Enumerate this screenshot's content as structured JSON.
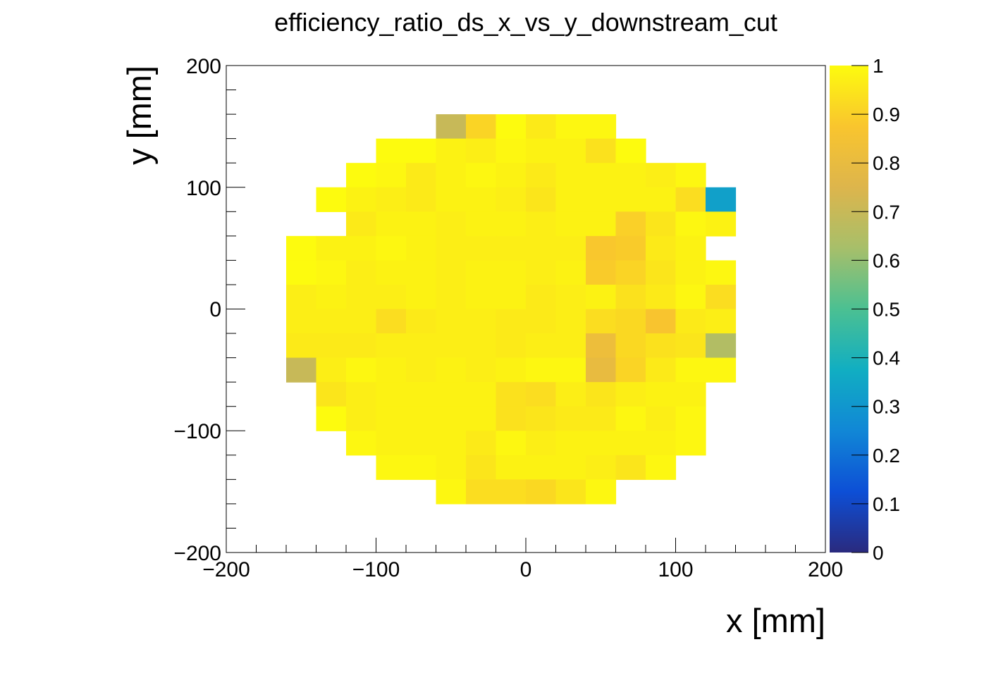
{
  "chart_data": {
    "type": "heatmap",
    "title": "efficiency_ratio_ds_x_vs_y_downstream_cut",
    "xlabel": "x [mm]",
    "ylabel": "y [mm]",
    "xlim": [
      -200,
      200
    ],
    "ylim": [
      -200,
      200
    ],
    "zlim": [
      0,
      1
    ],
    "bin_width": 20,
    "x_tick_labels": [
      "−200",
      "−100",
      "0",
      "100",
      "200"
    ],
    "y_tick_labels": [
      "−200",
      "−100",
      "0",
      "100",
      "200"
    ],
    "z_tick_labels": [
      "0",
      "0.1",
      "0.2",
      "0.3",
      "0.4",
      "0.5",
      "0.6",
      "0.7",
      "0.8",
      "0.9",
      "1"
    ],
    "grid": false,
    "colorbar": "right",
    "palette": [
      "#2a2a7e",
      "#0d4fd6",
      "#1187d6",
      "#11aec2",
      "#4bc092",
      "#a7bf6a",
      "#ddb54c",
      "#f9c52e",
      "#fdfb0e"
    ],
    "rows": [
      {
        "y": 150,
        "x_start": -60,
        "values": [
          0.7,
          0.91,
          1.0,
          0.96,
          0.99,
          0.99
        ]
      },
      {
        "y": 130,
        "x_start": -100,
        "values": [
          1.0,
          1.0,
          0.98,
          0.97,
          0.99,
          0.98,
          0.98,
          0.94,
          1.0
        ]
      },
      {
        "y": 110,
        "x_start": -120,
        "values": [
          1.0,
          0.99,
          0.96,
          0.98,
          0.99,
          0.98,
          0.96,
          0.98,
          0.98,
          0.98,
          0.97,
          0.99
        ]
      },
      {
        "y": 90,
        "x_start": -140,
        "values": [
          1.0,
          0.98,
          0.97,
          0.96,
          0.98,
          0.98,
          0.97,
          0.95,
          0.98,
          0.98,
          0.98,
          0.98,
          0.93,
          0.33
        ]
      },
      {
        "y": 70,
        "x_start": -120,
        "values": [
          0.96,
          0.98,
          0.98,
          0.97,
          0.98,
          0.98,
          0.97,
          0.98,
          0.98,
          0.9,
          0.95,
          0.99,
          0.98
        ]
      },
      {
        "y": 50,
        "x_start": -160,
        "values": [
          1.0,
          0.98,
          0.98,
          0.99,
          0.98,
          0.97,
          0.97,
          0.97,
          0.97,
          0.97,
          0.88,
          0.89,
          0.96,
          0.98
        ]
      },
      {
        "y": 30,
        "x_start": -160,
        "values": [
          1.0,
          0.99,
          0.97,
          0.98,
          0.98,
          0.97,
          0.98,
          0.98,
          0.97,
          0.98,
          0.89,
          0.91,
          0.95,
          0.98,
          0.99
        ]
      },
      {
        "y": 10,
        "x_start": -160,
        "values": [
          0.97,
          0.98,
          0.97,
          0.97,
          0.98,
          0.97,
          0.98,
          0.98,
          0.96,
          0.97,
          0.98,
          0.94,
          0.96,
          0.99,
          0.93
        ]
      },
      {
        "y": -10,
        "x_start": -160,
        "values": [
          0.97,
          0.97,
          0.97,
          0.93,
          0.96,
          0.97,
          0.97,
          0.96,
          0.96,
          0.97,
          0.93,
          0.92,
          0.87,
          0.96,
          0.97
        ]
      },
      {
        "y": -30,
        "x_start": -160,
        "values": [
          0.96,
          0.96,
          0.96,
          0.97,
          0.97,
          0.97,
          0.97,
          0.96,
          0.97,
          0.97,
          0.82,
          0.92,
          0.94,
          0.95,
          0.65
        ]
      },
      {
        "y": -50,
        "x_start": -160,
        "values": [
          0.7,
          0.97,
          0.99,
          0.98,
          0.97,
          0.98,
          0.97,
          0.98,
          0.99,
          0.99,
          0.8,
          0.91,
          0.96,
          0.99,
          0.99
        ]
      },
      {
        "y": -70,
        "x_start": -140,
        "values": [
          0.95,
          0.97,
          0.98,
          0.98,
          0.98,
          0.98,
          0.94,
          0.93,
          0.97,
          0.95,
          0.97,
          0.98,
          0.98
        ]
      },
      {
        "y": -90,
        "x_start": -140,
        "values": [
          1.0,
          0.97,
          0.98,
          0.98,
          0.98,
          0.98,
          0.94,
          0.95,
          0.96,
          0.96,
          0.99,
          0.97,
          0.99
        ]
      },
      {
        "y": -110,
        "x_start": -120,
        "values": [
          0.99,
          0.98,
          0.98,
          0.98,
          0.96,
          0.99,
          0.97,
          0.98,
          0.98,
          0.98,
          0.98,
          0.99
        ]
      },
      {
        "y": -130,
        "x_start": -100,
        "values": [
          0.99,
          0.99,
          0.98,
          0.95,
          0.98,
          0.98,
          0.98,
          0.97,
          0.95,
          0.99
        ]
      },
      {
        "y": -150,
        "x_start": -60,
        "values": [
          0.99,
          0.93,
          0.93,
          0.92,
          0.95,
          0.99
        ]
      }
    ]
  }
}
